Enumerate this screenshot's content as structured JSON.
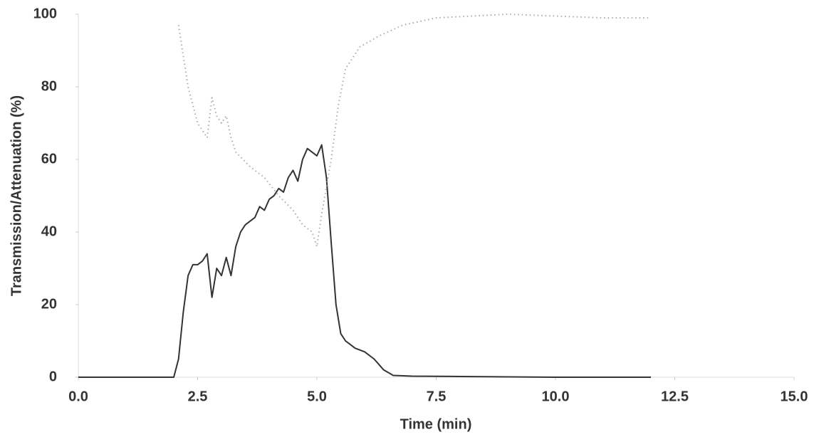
{
  "chart_data": {
    "type": "line",
    "xlabel": "Time (min)",
    "ylabel": "Transmission/Attenuation (%)",
    "xlim": [
      0,
      15
    ],
    "ylim": [
      0,
      100
    ],
    "xticks": [
      {
        "value": 0,
        "label": "0.0"
      },
      2.5,
      {
        "value": 5,
        "label": "5.0"
      },
      7.5,
      {
        "value": 10,
        "label": "10.0"
      },
      12.5,
      {
        "value": 15,
        "label": "15.0"
      }
    ],
    "yticks": [
      0,
      20,
      40,
      60,
      80,
      100
    ],
    "series": [
      {
        "color": "#333333",
        "style": "solid",
        "x": [
          0,
          1,
          2.0,
          2.1,
          2.2,
          2.3,
          2.4,
          2.5,
          2.6,
          2.7,
          2.8,
          2.9,
          3.0,
          3.1,
          3.2,
          3.3,
          3.4,
          3.5,
          3.6,
          3.7,
          3.8,
          3.9,
          4.0,
          4.1,
          4.2,
          4.3,
          4.4,
          4.5,
          4.6,
          4.7,
          4.8,
          4.9,
          5.0,
          5.1,
          5.2,
          5.3,
          5.4,
          5.5,
          5.6,
          5.7,
          5.8,
          6.0,
          6.2,
          6.4,
          6.6,
          7.0,
          8.0,
          10.0,
          12.0
        ],
        "values": [
          0,
          0,
          0,
          5,
          18,
          28,
          31,
          31,
          32,
          34,
          22,
          30,
          28,
          33,
          28,
          36,
          40,
          42,
          43,
          44,
          47,
          46,
          49,
          50,
          52,
          51,
          55,
          57,
          54,
          60,
          63,
          62,
          61,
          64,
          55,
          37,
          20,
          12,
          10,
          9,
          8,
          7,
          5,
          2,
          0.5,
          0.3,
          0.2,
          0,
          0
        ]
      },
      {
        "color": "#aaaaaa",
        "style": "dotted",
        "x": [
          2.1,
          2.3,
          2.5,
          2.7,
          2.8,
          2.9,
          3.0,
          3.1,
          3.2,
          3.3,
          3.6,
          3.9,
          4.2,
          4.5,
          4.7,
          4.9,
          5.0,
          5.1,
          5.3,
          5.45,
          5.6,
          5.9,
          6.3,
          6.8,
          7.5,
          9.0,
          11.0,
          12.0
        ],
        "values": [
          97,
          80,
          70,
          66,
          77,
          72,
          70,
          72,
          66,
          62,
          58,
          55,
          50,
          46,
          42,
          40,
          36,
          45,
          60,
          75,
          85,
          91,
          94,
          97,
          99,
          100,
          99,
          99
        ]
      }
    ]
  }
}
